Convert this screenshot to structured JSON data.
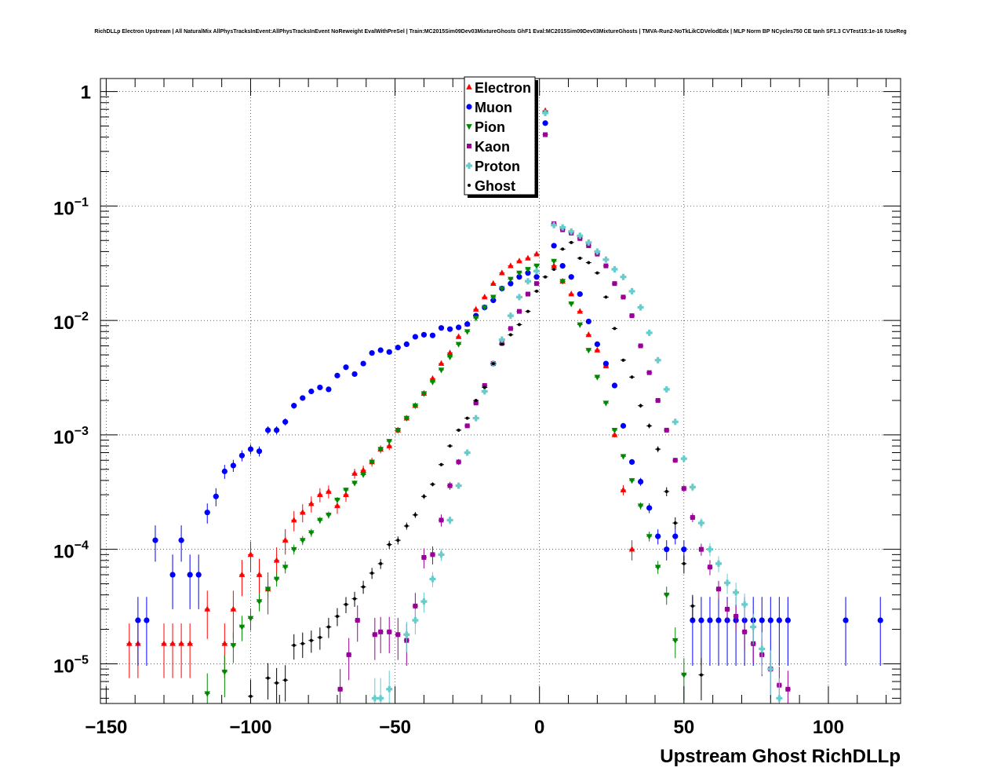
{
  "chart_data": {
    "type": "scatter",
    "title": "RichDLLp Electron Upstream | All NaturalMix AllPhysTracksInEvent:AllPhysTracksInEvent NoReweight EvalWithPreSel | Train:MC2015Sim09Dev03MixtureGhosts GhF1 Eval:MC2015Sim09Dev03MixtureGhosts | TMVA-Run2-NoTkLikCDVelodEdx | MLP Norm BP NCycles750 CE tanh SF1.3 CVTest15:1e-16 !UseReg",
    "xlabel": "Upstream Ghost RichDLLp",
    "ylabel": "",
    "xlim": [
      -152,
      125
    ],
    "ylim": [
      4.5e-06,
      1.3
    ],
    "yscale": "log",
    "grid": true,
    "legend_position": "top-center",
    "x_tick_labels": [
      {
        "value": -150,
        "label": "−150"
      },
      {
        "value": -100,
        "label": "−100"
      },
      {
        "value": -50,
        "label": "−50"
      },
      {
        "value": 0,
        "label": "0"
      },
      {
        "value": 50,
        "label": "50"
      },
      {
        "value": 100,
        "label": "100"
      }
    ],
    "y_tick_labels": [
      {
        "value": 1,
        "base": "1",
        "exp": ""
      },
      {
        "value": 0.1,
        "base": "10",
        "exp": "−1"
      },
      {
        "value": 0.01,
        "base": "10",
        "exp": "−2"
      },
      {
        "value": 0.001,
        "base": "10",
        "exp": "−3"
      },
      {
        "value": 0.0001,
        "base": "10",
        "exp": "−4"
      },
      {
        "value": 1e-05,
        "base": "10",
        "exp": "−5"
      }
    ],
    "series": [
      {
        "name": "Electron",
        "color": "#ff0000",
        "marker": "triangle-up",
        "x": [
          -142,
          -139,
          -130,
          -127,
          -124,
          -121,
          -115,
          -109,
          -106,
          -103,
          -100,
          -97,
          -94,
          -91,
          -88,
          -85,
          -82,
          -79,
          -76,
          -73,
          -70,
          -67,
          -64,
          -61,
          -58,
          -55,
          -52,
          -49,
          -46,
          -43,
          -40,
          -37,
          -34,
          -31,
          -28,
          -25,
          -22,
          -19,
          -16,
          -13,
          -10,
          -7,
          -4,
          -1,
          2,
          5,
          8,
          11,
          14,
          17,
          20,
          23,
          26,
          29,
          32
        ],
        "y": [
          1.5e-05,
          1.5e-05,
          1.5e-05,
          1.5e-05,
          1.5e-05,
          1.5e-05,
          3e-05,
          1.5e-05,
          3e-05,
          6e-05,
          9e-05,
          6e-05,
          4.5e-05,
          8e-05,
          0.00012,
          0.00018,
          0.00021,
          0.00025,
          0.0003,
          0.00032,
          0.00024,
          0.0003,
          0.00046,
          0.00049,
          0.00058,
          0.00075,
          0.0008,
          0.0011,
          0.0014,
          0.0018,
          0.0023,
          0.0031,
          0.0042,
          0.0052,
          0.0072,
          0.0093,
          0.0125,
          0.016,
          0.021,
          0.026,
          0.03,
          0.033,
          0.035,
          0.038,
          0.68,
          0.03,
          0.022,
          0.017,
          0.012,
          0.0075,
          0.0055,
          0.004,
          0.001,
          0.00033,
          0.0001
        ],
        "err": [
          0.5,
          0.5,
          0.5,
          0.5,
          0.5,
          0.5,
          0.45,
          0.5,
          0.45,
          0.35,
          0.3,
          0.38,
          0.4,
          0.3,
          0.25,
          0.2,
          0.18,
          0.16,
          0.14,
          0.13,
          0.15,
          0.13,
          0.1,
          0.1,
          0.09,
          0.08,
          0.08,
          0.06,
          0.05,
          0.04,
          0.04,
          0.03,
          0.03,
          0.02,
          0.02,
          0.02,
          0.01,
          0.01,
          0.01,
          0.01,
          0.01,
          0.01,
          0.01,
          0.01,
          0.01,
          0.01,
          0.01,
          0.01,
          0.01,
          0.02,
          0.02,
          0.02,
          0.05,
          0.1,
          0.2
        ]
      },
      {
        "name": "Muon",
        "color": "#0000ff",
        "marker": "circle",
        "x": [
          -139,
          -136,
          -133,
          -127,
          -124,
          -121,
          -118,
          -115,
          -112,
          -109,
          -106,
          -103,
          -100,
          -97,
          -94,
          -91,
          -88,
          -85,
          -82,
          -79,
          -76,
          -73,
          -70,
          -67,
          -64,
          -61,
          -58,
          -55,
          -52,
          -49,
          -46,
          -43,
          -40,
          -37,
          -34,
          -31,
          -28,
          -25,
          -22,
          -19,
          -16,
          -13,
          -10,
          -7,
          -4,
          -1,
          2,
          5,
          8,
          11,
          14,
          17,
          20,
          23,
          26,
          29,
          32,
          35,
          38,
          41,
          44,
          47,
          50,
          53,
          56,
          59,
          62,
          65,
          68,
          71,
          74,
          77,
          80,
          83,
          86,
          106,
          118
        ],
        "y": [
          2.4e-05,
          2.4e-05,
          0.00012,
          6e-05,
          0.00012,
          6e-05,
          6e-05,
          0.00021,
          0.00029,
          0.00048,
          0.00054,
          0.00066,
          0.00075,
          0.00072,
          0.0011,
          0.0011,
          0.0013,
          0.0018,
          0.0021,
          0.0024,
          0.0026,
          0.0025,
          0.0033,
          0.0039,
          0.0034,
          0.0042,
          0.0052,
          0.0055,
          0.0053,
          0.0058,
          0.0062,
          0.0072,
          0.0075,
          0.0074,
          0.0086,
          0.0084,
          0.0087,
          0.0093,
          0.011,
          0.013,
          0.015,
          0.019,
          0.021,
          0.024,
          0.026,
          0.024,
          0.53,
          0.045,
          0.03,
          0.024,
          0.017,
          0.0098,
          0.0062,
          0.0042,
          0.0027,
          0.0012,
          0.00058,
          0.00039,
          0.00023,
          0.00013,
          0.0001,
          0.00013,
          0.0001,
          2.4e-05,
          2.4e-05,
          2.4e-05,
          2.4e-05,
          2.4e-05,
          2.4e-05,
          2.4e-05,
          2.4e-05,
          2.4e-05,
          2.4e-05,
          2.4e-05,
          2.4e-05,
          2.4e-05,
          2.4e-05
        ],
        "err": [
          0.6,
          0.6,
          0.35,
          0.5,
          0.35,
          0.5,
          0.5,
          0.2,
          0.18,
          0.14,
          0.12,
          0.11,
          0.1,
          0.1,
          0.08,
          0.08,
          0.07,
          0.06,
          0.05,
          0.05,
          0.05,
          0.05,
          0.04,
          0.04,
          0.04,
          0.04,
          0.03,
          0.03,
          0.03,
          0.03,
          0.03,
          0.03,
          0.03,
          0.03,
          0.02,
          0.02,
          0.02,
          0.02,
          0.02,
          0.02,
          0.02,
          0.02,
          0.01,
          0.01,
          0.01,
          0.01,
          0.01,
          0.01,
          0.01,
          0.01,
          0.01,
          0.01,
          0.01,
          0.02,
          0.02,
          0.03,
          0.05,
          0.08,
          0.1,
          0.15,
          0.2,
          0.15,
          0.2,
          0.6,
          0.6,
          0.6,
          0.6,
          0.6,
          0.6,
          0.6,
          0.6,
          0.6,
          0.6,
          0.6,
          0.6,
          0.6,
          0.6
        ]
      },
      {
        "name": "Pion",
        "color": "#008800",
        "marker": "triangle-down",
        "x": [
          -115,
          -109,
          -106,
          -103,
          -100,
          -97,
          -94,
          -91,
          -88,
          -85,
          -82,
          -79,
          -76,
          -73,
          -70,
          -67,
          -64,
          -61,
          -58,
          -55,
          -52,
          -49,
          -46,
          -43,
          -40,
          -37,
          -34,
          -31,
          -28,
          -25,
          -22,
          -19,
          -16,
          -13,
          -10,
          -7,
          -4,
          -1,
          2,
          5,
          8,
          11,
          14,
          17,
          20,
          23,
          26,
          29,
          32,
          35,
          38,
          41,
          44,
          47,
          50
        ],
        "y": [
          5.5e-06,
          8.5e-06,
          1.45e-05,
          2.1e-05,
          2.5e-05,
          3.5e-05,
          4.5e-05,
          5.5e-05,
          7e-05,
          0.0001,
          0.00012,
          0.00014,
          0.00018,
          0.0002,
          0.00027,
          0.00033,
          0.00038,
          0.00045,
          0.00058,
          0.00075,
          0.00088,
          0.0011,
          0.0014,
          0.0018,
          0.0023,
          0.0029,
          0.0037,
          0.0048,
          0.0062,
          0.008,
          0.0105,
          0.013,
          0.016,
          0.019,
          0.023,
          0.026,
          0.028,
          0.03,
          0.65,
          0.033,
          0.022,
          0.014,
          0.0092,
          0.0055,
          0.0032,
          0.0019,
          0.0011,
          0.00065,
          0.0004,
          0.00024,
          0.00013,
          7e-05,
          4e-05,
          1.6e-05,
          8e-06
        ],
        "err": [
          0.5,
          0.4,
          0.3,
          0.25,
          0.22,
          0.18,
          0.16,
          0.14,
          0.12,
          0.1,
          0.09,
          0.08,
          0.07,
          0.07,
          0.06,
          0.05,
          0.05,
          0.04,
          0.04,
          0.03,
          0.03,
          0.03,
          0.02,
          0.02,
          0.02,
          0.02,
          0.01,
          0.01,
          0.01,
          0.01,
          0.01,
          0.01,
          0.01,
          0.01,
          0.01,
          0.01,
          0.01,
          0.01,
          0.01,
          0.01,
          0.01,
          0.01,
          0.01,
          0.01,
          0.01,
          0.02,
          0.03,
          0.04,
          0.05,
          0.07,
          0.1,
          0.13,
          0.18,
          0.3,
          0.4
        ]
      },
      {
        "name": "Kaon",
        "color": "#990099",
        "marker": "square",
        "x": [
          -69,
          -66,
          -63,
          -57,
          -55,
          -52,
          -49,
          -46,
          -43,
          -40,
          -37,
          -34,
          -31,
          -28,
          -25,
          -22,
          -19,
          -16,
          -13,
          -10,
          -7,
          -4,
          -1,
          2,
          5,
          8,
          11,
          14,
          17,
          20,
          23,
          26,
          29,
          32,
          35,
          38,
          41,
          44,
          47,
          50,
          53,
          56,
          59,
          62,
          65,
          68,
          71,
          74,
          77,
          80,
          83,
          86
        ],
        "y": [
          6e-06,
          1.2e-05,
          2.4e-05,
          1.8e-05,
          1.9e-05,
          1.9e-05,
          1.8e-05,
          1.6e-05,
          3.2e-05,
          8.5e-05,
          9e-05,
          0.00018,
          0.00036,
          0.00058,
          0.0012,
          0.0019,
          0.0027,
          0.0042,
          0.0063,
          0.0085,
          0.012,
          0.017,
          0.021,
          0.42,
          0.07,
          0.062,
          0.058,
          0.052,
          0.045,
          0.038,
          0.03,
          0.021,
          0.016,
          0.011,
          0.006,
          0.0035,
          0.002,
          0.0011,
          0.0006,
          0.00034,
          0.00019,
          0.0001,
          7e-05,
          4.5e-05,
          3e-05,
          2.6e-05,
          1.9e-05,
          1.5e-05,
          1.2e-05,
          9e-06,
          6.5e-06,
          6e-06
        ],
        "err": [
          0.5,
          0.4,
          0.35,
          0.4,
          0.35,
          0.35,
          0.4,
          0.4,
          0.3,
          0.2,
          0.18,
          0.12,
          0.08,
          0.06,
          0.04,
          0.03,
          0.03,
          0.02,
          0.02,
          0.01,
          0.01,
          0.01,
          0.01,
          0.01,
          0.01,
          0.01,
          0.01,
          0.01,
          0.01,
          0.01,
          0.01,
          0.01,
          0.01,
          0.01,
          0.02,
          0.02,
          0.03,
          0.04,
          0.05,
          0.07,
          0.09,
          0.12,
          0.15,
          0.18,
          0.22,
          0.25,
          0.3,
          0.32,
          0.35,
          0.4,
          0.45,
          0.45
        ]
      },
      {
        "name": "Proton",
        "color": "#66cccc",
        "marker": "cross",
        "x": [
          -57,
          -55,
          -52,
          -46,
          -43,
          -40,
          -37,
          -34,
          -31,
          -28,
          -25,
          -22,
          -19,
          -16,
          -13,
          -10,
          -7,
          -4,
          -1,
          2,
          5,
          8,
          11,
          14,
          17,
          20,
          23,
          26,
          29,
          32,
          35,
          38,
          41,
          44,
          47,
          50,
          53,
          56,
          59,
          62,
          65,
          68,
          71,
          74,
          77,
          80,
          83
        ],
        "y": [
          5e-06,
          5e-06,
          6e-06,
          1.8e-05,
          2.4e-05,
          3.5e-05,
          5.5e-05,
          9e-05,
          0.00018,
          0.00036,
          0.0007,
          0.0014,
          0.0024,
          0.0042,
          0.0068,
          0.011,
          0.016,
          0.022,
          0.027,
          0.65,
          0.068,
          0.065,
          0.06,
          0.055,
          0.048,
          0.04,
          0.034,
          0.028,
          0.024,
          0.018,
          0.013,
          0.0078,
          0.0045,
          0.0025,
          0.0013,
          0.00062,
          0.00035,
          0.00017,
          0.0001,
          7.5e-05,
          5.1e-05,
          4.2e-05,
          3.3e-05,
          2.1e-05,
          1.35e-05,
          9e-06,
          5e-06
        ],
        "err": [
          0.5,
          0.5,
          0.45,
          0.3,
          0.25,
          0.2,
          0.15,
          0.12,
          0.08,
          0.06,
          0.04,
          0.03,
          0.02,
          0.02,
          0.01,
          0.01,
          0.01,
          0.01,
          0.01,
          0.01,
          0.01,
          0.01,
          0.01,
          0.01,
          0.01,
          0.01,
          0.01,
          0.01,
          0.01,
          0.01,
          0.01,
          0.01,
          0.02,
          0.03,
          0.04,
          0.06,
          0.08,
          0.1,
          0.13,
          0.16,
          0.2,
          0.22,
          0.25,
          0.3,
          0.4,
          0.45,
          0.5
        ]
      },
      {
        "name": "Ghost",
        "color": "#000000",
        "marker": "point",
        "x": [
          -100,
          -94,
          -91,
          -88,
          -85,
          -82,
          -79,
          -76,
          -73,
          -70,
          -67,
          -64,
          -61,
          -58,
          -55,
          -52,
          -49,
          -46,
          -43,
          -40,
          -37,
          -34,
          -31,
          -28,
          -25,
          -22,
          -19,
          -16,
          -13,
          -10,
          -7,
          -4,
          -1,
          2,
          5,
          8,
          11,
          14,
          17,
          20,
          23,
          26,
          29,
          32,
          35,
          38,
          41,
          44,
          47,
          50,
          53,
          56
        ],
        "y": [
          5.2e-06,
          7.5e-06,
          6.8e-06,
          7.2e-06,
          1.45e-05,
          1.5e-05,
          1.6e-05,
          1.7e-05,
          2.1e-05,
          2.6e-05,
          3.3e-05,
          3.7e-05,
          4.7e-05,
          6.2e-05,
          7.5e-05,
          0.00011,
          0.00012,
          0.00016,
          0.0002,
          0.00029,
          0.00037,
          0.00055,
          0.0008,
          0.0011,
          0.0014,
          0.002,
          0.0026,
          0.0042,
          0.0062,
          0.0075,
          0.0092,
          0.012,
          0.018,
          0.024,
          0.028,
          0.042,
          0.048,
          0.035,
          0.032,
          0.026,
          0.016,
          0.0085,
          0.0045,
          0.0032,
          0.0018,
          0.0012,
          0.00075,
          0.00032,
          0.00017,
          7.5e-05,
          3.2e-05,
          8e-06
        ],
        "err": [
          0.4,
          0.35,
          0.35,
          0.35,
          0.25,
          0.25,
          0.22,
          0.22,
          0.2,
          0.18,
          0.16,
          0.15,
          0.13,
          0.11,
          0.1,
          0.08,
          0.08,
          0.07,
          0.06,
          0.05,
          0.04,
          0.03,
          0.03,
          0.03,
          0.02,
          0.02,
          0.02,
          0.02,
          0.01,
          0.01,
          0.01,
          0.01,
          0.01,
          0.01,
          0.01,
          0.01,
          0.01,
          0.01,
          0.01,
          0.01,
          0.01,
          0.02,
          0.02,
          0.03,
          0.04,
          0.05,
          0.06,
          0.09,
          0.12,
          0.18,
          0.25,
          0.4
        ]
      }
    ]
  }
}
